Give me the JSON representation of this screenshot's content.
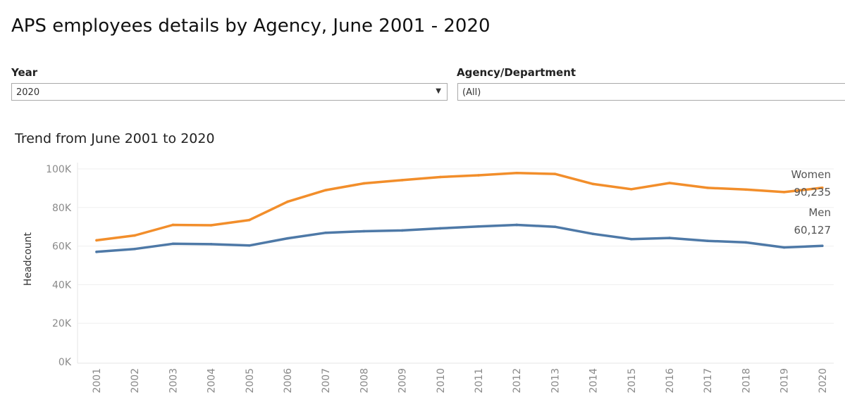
{
  "header": {
    "title": "APS employees details by Agency, June 2001 - 2020"
  },
  "filters": {
    "year": {
      "label": "Year",
      "value": "2020"
    },
    "agency": {
      "label": "Agency/Department",
      "value": "(All)"
    }
  },
  "chart_data": {
    "type": "line",
    "title": "Trend from June 2001 to 2020",
    "xlabel": "",
    "ylabel": "Headcount",
    "ylim": [
      0,
      100000
    ],
    "ytick_values": [
      0,
      20000,
      40000,
      60000,
      80000,
      100000
    ],
    "ytick_labels": [
      "0K",
      "20K",
      "40K",
      "60K",
      "80K",
      "100K"
    ],
    "grid": true,
    "categories": [
      "2001",
      "2002",
      "2003",
      "2004",
      "2005",
      "2006",
      "2007",
      "2008",
      "2009",
      "2010",
      "2011",
      "2012",
      "2013",
      "2014",
      "2015",
      "2016",
      "2017",
      "2018",
      "2019",
      "2020"
    ],
    "series": [
      {
        "name": "Women",
        "color": "#f28e2b",
        "end_label": "90,235",
        "values": [
          63000,
          65500,
          71000,
          70800,
          73500,
          83000,
          89000,
          92500,
          94200,
          95800,
          96700,
          97900,
          97400,
          92200,
          89500,
          92700,
          90200,
          89300,
          88000,
          90235
        ]
      },
      {
        "name": "Men",
        "color": "#4e79a7",
        "end_label": "60,127",
        "values": [
          57000,
          58500,
          61200,
          61000,
          60300,
          64000,
          66900,
          67700,
          68100,
          69200,
          70200,
          71000,
          70000,
          66300,
          63600,
          64200,
          62700,
          61900,
          59300,
          60127
        ]
      }
    ]
  }
}
